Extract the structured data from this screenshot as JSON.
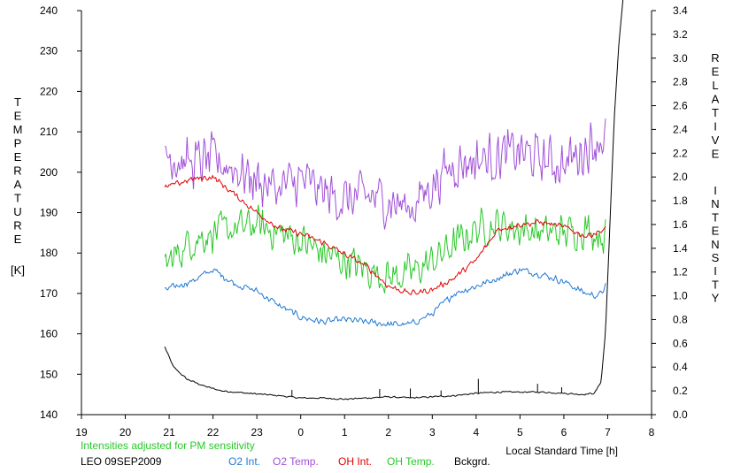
{
  "chart_data": {
    "type": "line",
    "xlabel": "Local Standard Time [h]",
    "x_ticks": [
      "19",
      "20",
      "21",
      "22",
      "23",
      "0",
      "1",
      "2",
      "3",
      "4",
      "5",
      "6",
      "7",
      "8"
    ],
    "xlim": [
      19,
      32
    ],
    "left_axis": {
      "label_letters": [
        "T",
        "E",
        "M",
        "P",
        "E",
        "R",
        "A",
        "T",
        "U",
        "R",
        "E"
      ],
      "unit": "[K]",
      "ticks": [
        "140",
        "150",
        "160",
        "170",
        "180",
        "190",
        "200",
        "210",
        "220",
        "230",
        "240"
      ],
      "ylim": [
        140,
        240
      ]
    },
    "right_axis": {
      "label_letters_1": [
        "R",
        "E",
        "L",
        "A",
        "T",
        "I",
        "V",
        "E"
      ],
      "label_letters_2": [
        "I",
        "N",
        "T",
        "E",
        "N",
        "S",
        "I",
        "T",
        "Y"
      ],
      "ticks": [
        "0.0",
        "0.2",
        "0.4",
        "0.6",
        "0.8",
        "1.0",
        "1.2",
        "1.4",
        "1.6",
        "1.8",
        "2.0",
        "2.2",
        "2.4",
        "2.6",
        "2.8",
        "3.0",
        "3.2",
        "3.4"
      ],
      "ylim": [
        0,
        3.4
      ]
    },
    "annotation": "Intensities adjusted for PM sensitivity",
    "station_date": "LEO 09SEP2009",
    "grid": false,
    "legend_position": "bottom",
    "series": [
      {
        "name": "O2 Int.",
        "color": "#1f78d4",
        "axis": "right",
        "noise": 0.035,
        "x": [
          20.9,
          21.5,
          22.0,
          22.5,
          23.0,
          23.5,
          24.0,
          24.5,
          25.0,
          25.5,
          26.0,
          26.5,
          27.0,
          27.5,
          28.0,
          28.5,
          29.0,
          29.5,
          30.0,
          30.5,
          30.8,
          30.95
        ],
        "y": [
          1.05,
          1.12,
          1.22,
          1.1,
          1.04,
          0.92,
          0.82,
          0.78,
          0.8,
          0.78,
          0.76,
          0.76,
          0.85,
          1.02,
          1.08,
          1.15,
          1.22,
          1.18,
          1.12,
          1.02,
          1.0,
          1.08
        ]
      },
      {
        "name": "O2 Temp.",
        "color": "#a04fd8",
        "axis": "left",
        "noise": 7.5,
        "x": [
          20.9,
          21.5,
          22.0,
          22.5,
          23.0,
          23.5,
          24.0,
          24.5,
          25.0,
          25.5,
          26.0,
          26.5,
          27.0,
          27.5,
          28.0,
          28.5,
          29.0,
          29.5,
          30.0,
          30.5,
          30.95
        ],
        "y": [
          205,
          202,
          203,
          201,
          198,
          196,
          198,
          195,
          193,
          194,
          193,
          191,
          197,
          202,
          203,
          204,
          205,
          203,
          202,
          206,
          209
        ]
      },
      {
        "name": "OH Int.",
        "color": "#e00000",
        "axis": "right",
        "noise": 0.03,
        "x": [
          20.9,
          21.5,
          22.0,
          22.5,
          23.0,
          23.5,
          24.0,
          24.5,
          25.0,
          25.5,
          26.0,
          26.5,
          27.0,
          27.5,
          28.0,
          28.5,
          29.0,
          29.5,
          30.0,
          30.5,
          30.95
        ],
        "y": [
          1.91,
          1.98,
          2.0,
          1.85,
          1.7,
          1.57,
          1.52,
          1.45,
          1.35,
          1.25,
          1.08,
          1.02,
          1.05,
          1.15,
          1.3,
          1.56,
          1.6,
          1.62,
          1.58,
          1.5,
          1.56
        ]
      },
      {
        "name": "OH Temp.",
        "color": "#28c828",
        "axis": "left",
        "noise": 5.5,
        "x": [
          20.9,
          21.5,
          22.0,
          22.5,
          23.0,
          23.5,
          24.0,
          24.5,
          25.0,
          25.5,
          26.0,
          26.5,
          27.0,
          27.5,
          28.0,
          28.5,
          29.0,
          29.5,
          30.0,
          30.5,
          30.95
        ],
        "y": [
          177,
          183,
          185,
          186,
          187,
          185,
          183,
          180,
          178,
          176,
          174,
          175,
          178,
          182,
          186,
          187,
          186,
          185,
          185,
          186,
          184
        ]
      },
      {
        "name": "Bckgrd.",
        "color": "#000000",
        "axis": "right",
        "noise": 0.008,
        "x": [
          20.9,
          21.1,
          21.4,
          21.8,
          22.2,
          22.8,
          23.5,
          24.0,
          24.5,
          25.0,
          25.5,
          26.0,
          26.5,
          27.0,
          27.5,
          28.0,
          28.5,
          29.0,
          29.5,
          30.0,
          30.4,
          30.7,
          30.85,
          30.95,
          31.05,
          31.15,
          31.25,
          31.35
        ],
        "y": [
          0.57,
          0.4,
          0.3,
          0.24,
          0.2,
          0.18,
          0.16,
          0.14,
          0.14,
          0.13,
          0.14,
          0.15,
          0.14,
          0.15,
          0.16,
          0.18,
          0.19,
          0.19,
          0.19,
          0.18,
          0.17,
          0.18,
          0.28,
          0.7,
          1.6,
          2.5,
          3.1,
          3.5
        ]
      }
    ]
  }
}
